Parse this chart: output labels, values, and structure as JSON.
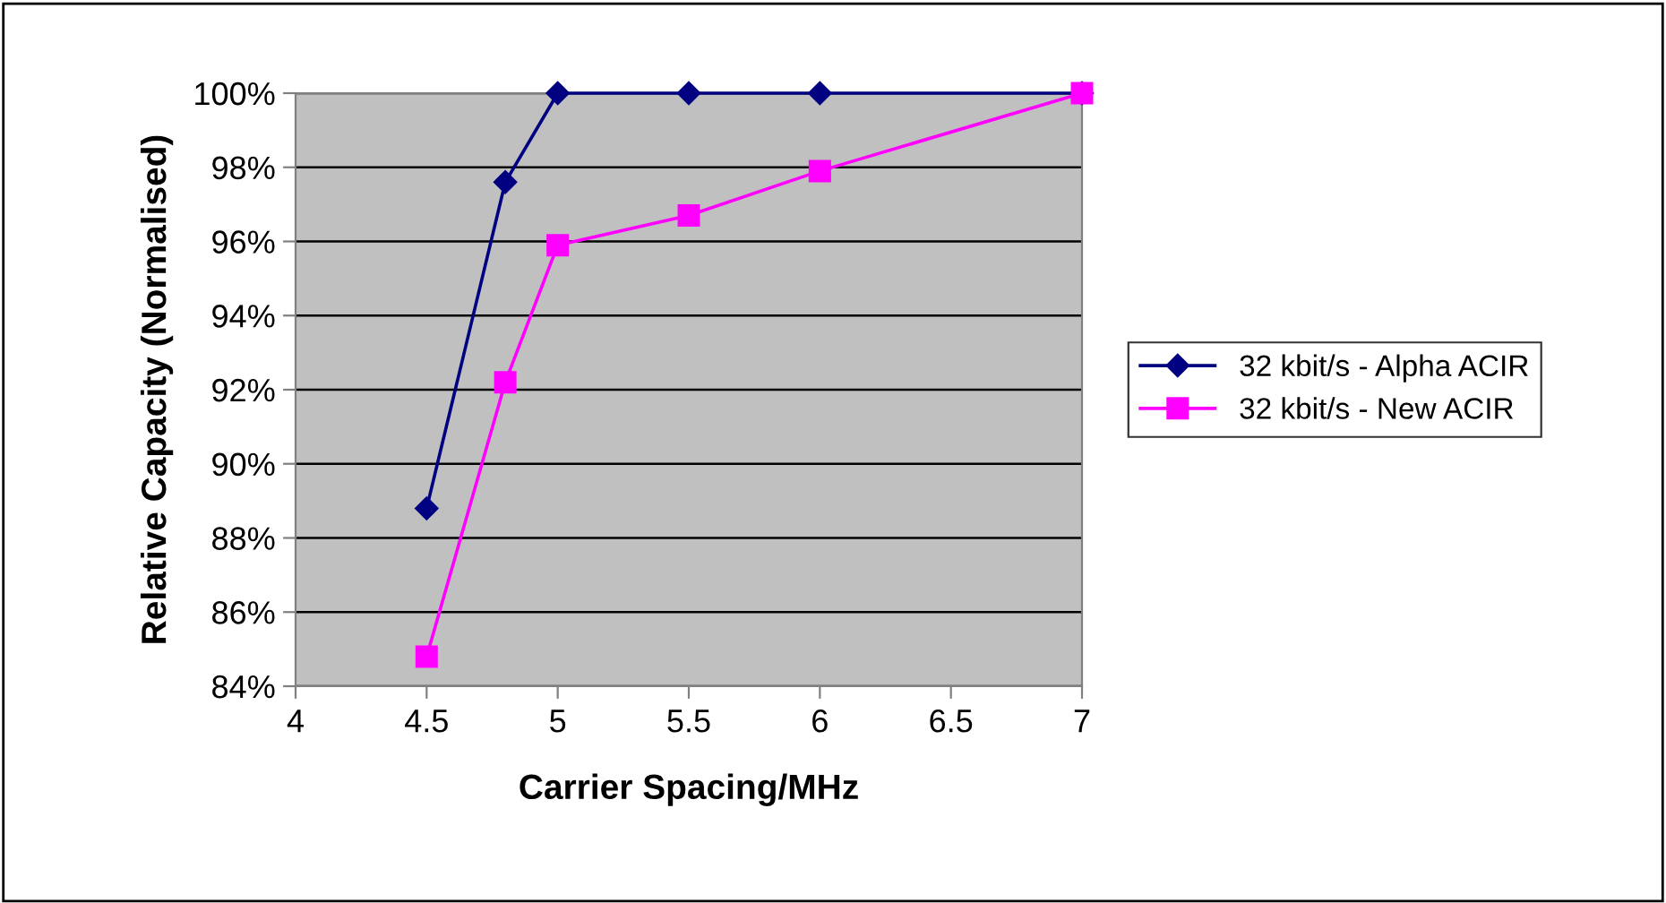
{
  "chart_data": {
    "type": "line",
    "xlabel": "Carrier Spacing/MHz",
    "ylabel": "Relative Capacity (Normalised)",
    "series": [
      {
        "name": "32 kbit/s - Alpha ACIR",
        "color": "#000080",
        "marker": "diamond",
        "x": [
          4.5,
          4.8,
          5,
          5.5,
          6,
          7
        ],
        "values": [
          88.8,
          97.6,
          100,
          100,
          100,
          100
        ]
      },
      {
        "name": "32 kbit/s - New ACIR",
        "color": "#ff00ff",
        "marker": "square",
        "x": [
          4.5,
          4.8,
          5,
          5.5,
          6,
          7
        ],
        "values": [
          84.8,
          92.2,
          95.9,
          96.7,
          97.9,
          100
        ]
      }
    ],
    "xlim": [
      4,
      7
    ],
    "xticks": [
      4,
      4.5,
      5,
      5.5,
      6,
      6.5,
      7
    ],
    "ylim": [
      84,
      100
    ],
    "yticks": [
      {
        "value": 84,
        "label": "84%"
      },
      {
        "value": 86,
        "label": "86%"
      },
      {
        "value": 88,
        "label": "88%"
      },
      {
        "value": 90,
        "label": "90%"
      },
      {
        "value": 92,
        "label": "92%"
      },
      {
        "value": 94,
        "label": "94%"
      },
      {
        "value": 96,
        "label": "96%"
      },
      {
        "value": 98,
        "label": "98%"
      },
      {
        "value": 100,
        "label": "100%"
      }
    ],
    "grid": "y",
    "legend": "right",
    "line_style": "solid"
  }
}
